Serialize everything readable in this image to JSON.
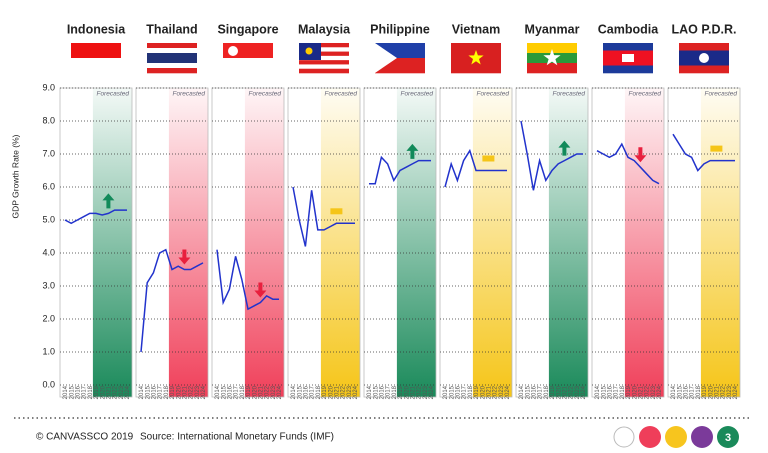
{
  "chart_data": [
    {
      "type": "line",
      "title": "Indonesia",
      "categories": [
        "2014",
        "2015",
        "2016",
        "2017",
        "2018",
        "2019",
        "2020",
        "2021",
        "2022",
        "2023",
        "2024"
      ],
      "values": [
        5.0,
        4.9,
        5.0,
        5.1,
        5.2,
        5.2,
        5.15,
        5.2,
        5.3,
        5.3,
        5.3
      ],
      "color": "#2233cc",
      "ylim": [
        0,
        9
      ],
      "y_label": "GDP Growth Rate (%)",
      "yticks": [
        {
          "value": 0,
          "label": "0.0"
        },
        {
          "value": 1,
          "label": "1.0"
        },
        {
          "value": 2,
          "label": "2.0"
        },
        {
          "value": 3,
          "label": "3.0"
        },
        {
          "value": 4,
          "label": "4.0"
        },
        {
          "value": 5,
          "label": "5.0"
        },
        {
          "value": 6,
          "label": "6.0"
        },
        {
          "value": 7,
          "label": "7.0"
        },
        {
          "value": 8,
          "label": "8.0"
        },
        {
          "value": 9,
          "label": "9.0"
        }
      ],
      "annotation": "Forecasted",
      "forecast_from": "2019",
      "trend": "up",
      "shade_color": "#1a8a5a"
    },
    {
      "type": "line",
      "title": "Thailand",
      "categories": [
        "2014",
        "2015",
        "2016",
        "2017",
        "2018",
        "2019",
        "2020",
        "2021",
        "2022",
        "2023",
        "2024"
      ],
      "values": [
        1.0,
        3.1,
        3.4,
        4.0,
        4.1,
        3.5,
        3.6,
        3.5,
        3.5,
        3.6,
        3.7
      ],
      "color": "#2233cc",
      "ylim": [
        0,
        9
      ],
      "annotation": "Forecasted",
      "forecast_from": "2019",
      "trend": "down",
      "shade_color": "#f0405a"
    },
    {
      "type": "line",
      "title": "Singapore",
      "categories": [
        "2014",
        "2015",
        "2016",
        "2017",
        "2018",
        "2019",
        "2020",
        "2021",
        "2022",
        "2023",
        "2024"
      ],
      "values": [
        4.1,
        2.5,
        2.9,
        3.9,
        3.2,
        2.3,
        2.4,
        2.5,
        2.7,
        2.6,
        2.6
      ],
      "color": "#2233cc",
      "ylim": [
        0,
        9
      ],
      "annotation": "Forecasted",
      "forecast_from": "2019",
      "trend": "down",
      "shade_color": "#f0405a"
    },
    {
      "type": "line",
      "title": "Malaysia",
      "categories": [
        "2014",
        "2015",
        "2016",
        "2017",
        "2018",
        "2019",
        "2020",
        "2021",
        "2022",
        "2023",
        "2024"
      ],
      "values": [
        6.0,
        5.0,
        4.2,
        5.9,
        4.7,
        4.7,
        4.8,
        4.9,
        4.9,
        4.9,
        4.9
      ],
      "color": "#2233cc",
      "ylim": [
        0,
        9
      ],
      "annotation": "Forecasted",
      "forecast_from": "2019",
      "trend": "flat",
      "shade_color": "#f5c518"
    },
    {
      "type": "line",
      "title": "Philippine",
      "categories": [
        "2014",
        "2015",
        "2016",
        "2017",
        "2018",
        "2019",
        "2020",
        "2021",
        "2022",
        "2023",
        "2024"
      ],
      "values": [
        6.1,
        6.1,
        6.9,
        6.7,
        6.2,
        6.5,
        6.6,
        6.7,
        6.8,
        6.8,
        6.8
      ],
      "color": "#2233cc",
      "ylim": [
        0,
        9
      ],
      "annotation": "Forecasted",
      "forecast_from": "2019",
      "trend": "up",
      "shade_color": "#1a8a5a"
    },
    {
      "type": "line",
      "title": "Vietnam",
      "categories": [
        "2014",
        "2015",
        "2016",
        "2017",
        "2018",
        "2019",
        "2020",
        "2021",
        "2022",
        "2023",
        "2024"
      ],
      "values": [
        6.0,
        6.7,
        6.2,
        6.8,
        7.1,
        6.5,
        6.5,
        6.5,
        6.5,
        6.5,
        6.5
      ],
      "color": "#2233cc",
      "ylim": [
        0,
        9
      ],
      "annotation": "Forecasted",
      "forecast_from": "2019",
      "trend": "flat",
      "shade_color": "#f5c518"
    },
    {
      "type": "line",
      "title": "Myanmar",
      "categories": [
        "2014",
        "2015",
        "2016",
        "2017",
        "2018",
        "2019",
        "2020",
        "2021",
        "2022",
        "2023",
        "2024"
      ],
      "values": [
        8.0,
        7.0,
        5.9,
        6.8,
        6.2,
        6.5,
        6.7,
        6.8,
        6.9,
        7.0,
        7.0
      ],
      "color": "#2233cc",
      "ylim": [
        0,
        9
      ],
      "annotation": "Forecasted",
      "forecast_from": "2019",
      "trend": "up",
      "shade_color": "#1a8a5a"
    },
    {
      "type": "line",
      "title": "Cambodia",
      "categories": [
        "2014",
        "2015",
        "2016",
        "2017",
        "2018",
        "2019",
        "2020",
        "2021",
        "2022",
        "2023",
        "2024"
      ],
      "values": [
        7.1,
        7.0,
        6.9,
        7.0,
        7.3,
        6.9,
        6.8,
        6.6,
        6.4,
        6.2,
        6.1
      ],
      "color": "#2233cc",
      "ylim": [
        0,
        9
      ],
      "annotation": "Forecasted",
      "forecast_from": "2019",
      "trend": "down",
      "shade_color": "#f0405a"
    },
    {
      "type": "line",
      "title": "LAO P.D.R.",
      "categories": [
        "2014",
        "2015",
        "2016",
        "2017",
        "2018",
        "2019",
        "2020",
        "2021",
        "2022",
        "2023",
        "2024"
      ],
      "values": [
        7.6,
        7.3,
        7.0,
        6.9,
        6.5,
        6.7,
        6.8,
        6.8,
        6.8,
        6.8,
        6.8
      ],
      "color": "#2233cc",
      "ylim": [
        0,
        9
      ],
      "annotation": "Forecasted",
      "forecast_from": "2019",
      "trend": "flat",
      "shade_color": "#f5c518"
    }
  ],
  "footer": {
    "copyright": "© CANVASSCO 2019",
    "source": "Source: International Monetary Funds (IMF)",
    "page": "3"
  }
}
